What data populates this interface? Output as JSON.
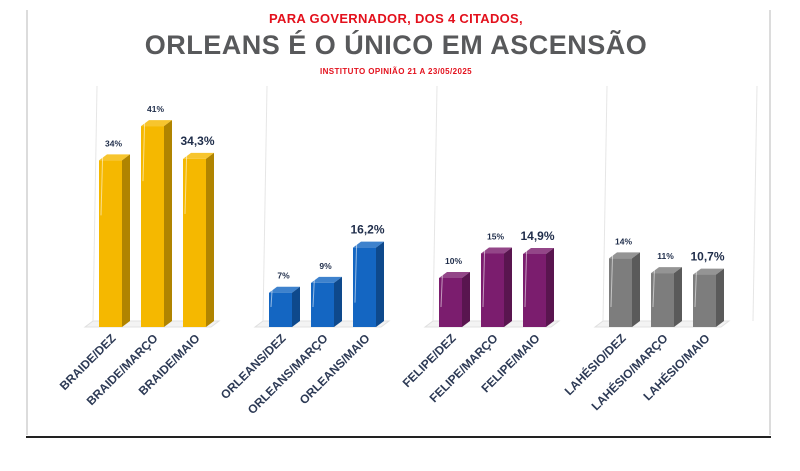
{
  "supertitle": "PARA GOVERNADOR, DOS 4 CITADOS,",
  "title": "ORLEANS É O ÚNICO EM ASCENSÃO",
  "source": "INSTITUTO OPINIÃO 21 A 23/05/2025",
  "colors": {
    "supertitle": "#e3101c",
    "title": "#58595b",
    "source": "#e3101c",
    "braide": "#f5b800",
    "orleans": "#1466c2",
    "felipe": "#7b1d6e",
    "lahesio": "#7d7d7d"
  },
  "chart_data": {
    "type": "bar",
    "title": "ORLEANS É O ÚNICO EM ASCENSÃO",
    "ylim": [
      0,
      45
    ],
    "grid": true,
    "categories": [
      "BRAIDE/DEZ",
      "BRAIDE/MARÇO",
      "BRAIDE/MAIO",
      "ORLEANS/DEZ",
      "ORLEANS/MARÇO",
      "ORLEANS/MAIO",
      "FELIPE/DEZ",
      "FELIPE/MARÇO",
      "FELIPE/MAIO",
      "LAHÉSIO/DEZ",
      "LAHÉSIO/MARÇO",
      "LAHÉSIO/MAIO"
    ],
    "values": [
      34,
      41,
      34.3,
      7,
      9,
      16.2,
      10,
      15,
      14.9,
      14,
      11,
      10.7
    ],
    "labels": [
      "34%",
      "41%",
      "34,3%",
      "7%",
      "9%",
      "16,2%",
      "10%",
      "15%",
      "14,9%",
      "14%",
      "11%",
      "10,7%"
    ],
    "groups": [
      {
        "color_key": "braide",
        "indices": [
          0,
          1,
          2
        ]
      },
      {
        "color_key": "orleans",
        "indices": [
          3,
          4,
          5
        ]
      },
      {
        "color_key": "felipe",
        "indices": [
          6,
          7,
          8
        ]
      },
      {
        "color_key": "lahesio",
        "indices": [
          9,
          10,
          11
        ]
      }
    ]
  }
}
